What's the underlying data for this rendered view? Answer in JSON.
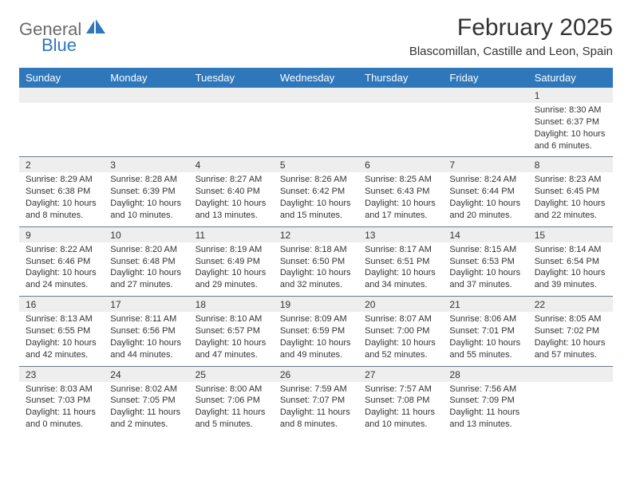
{
  "brand": {
    "word1": "General",
    "word2": "Blue",
    "text_color": "#6b6b6b",
    "accent_color": "#2f77bb"
  },
  "title": "February 2025",
  "location": "Blascomillan, Castille and Leon, Spain",
  "title_fontsize": 30,
  "location_fontsize": 15,
  "header_bg": "#2f77bb",
  "header_text_color": "#ffffff",
  "daynum_bg": "#eeeeee",
  "separator_color": "#6b7a8a",
  "body_fontsize": 11,
  "columns": [
    "Sunday",
    "Monday",
    "Tuesday",
    "Wednesday",
    "Thursday",
    "Friday",
    "Saturday"
  ],
  "weeks": [
    [
      null,
      null,
      null,
      null,
      null,
      null,
      {
        "n": "1",
        "sr": "8:30 AM",
        "ss": "6:37 PM",
        "dl": "10 hours and 6 minutes."
      }
    ],
    [
      {
        "n": "2",
        "sr": "8:29 AM",
        "ss": "6:38 PM",
        "dl": "10 hours and 8 minutes."
      },
      {
        "n": "3",
        "sr": "8:28 AM",
        "ss": "6:39 PM",
        "dl": "10 hours and 10 minutes."
      },
      {
        "n": "4",
        "sr": "8:27 AM",
        "ss": "6:40 PM",
        "dl": "10 hours and 13 minutes."
      },
      {
        "n": "5",
        "sr": "8:26 AM",
        "ss": "6:42 PM",
        "dl": "10 hours and 15 minutes."
      },
      {
        "n": "6",
        "sr": "8:25 AM",
        "ss": "6:43 PM",
        "dl": "10 hours and 17 minutes."
      },
      {
        "n": "7",
        "sr": "8:24 AM",
        "ss": "6:44 PM",
        "dl": "10 hours and 20 minutes."
      },
      {
        "n": "8",
        "sr": "8:23 AM",
        "ss": "6:45 PM",
        "dl": "10 hours and 22 minutes."
      }
    ],
    [
      {
        "n": "9",
        "sr": "8:22 AM",
        "ss": "6:46 PM",
        "dl": "10 hours and 24 minutes."
      },
      {
        "n": "10",
        "sr": "8:20 AM",
        "ss": "6:48 PM",
        "dl": "10 hours and 27 minutes."
      },
      {
        "n": "11",
        "sr": "8:19 AM",
        "ss": "6:49 PM",
        "dl": "10 hours and 29 minutes."
      },
      {
        "n": "12",
        "sr": "8:18 AM",
        "ss": "6:50 PM",
        "dl": "10 hours and 32 minutes."
      },
      {
        "n": "13",
        "sr": "8:17 AM",
        "ss": "6:51 PM",
        "dl": "10 hours and 34 minutes."
      },
      {
        "n": "14",
        "sr": "8:15 AM",
        "ss": "6:53 PM",
        "dl": "10 hours and 37 minutes."
      },
      {
        "n": "15",
        "sr": "8:14 AM",
        "ss": "6:54 PM",
        "dl": "10 hours and 39 minutes."
      }
    ],
    [
      {
        "n": "16",
        "sr": "8:13 AM",
        "ss": "6:55 PM",
        "dl": "10 hours and 42 minutes."
      },
      {
        "n": "17",
        "sr": "8:11 AM",
        "ss": "6:56 PM",
        "dl": "10 hours and 44 minutes."
      },
      {
        "n": "18",
        "sr": "8:10 AM",
        "ss": "6:57 PM",
        "dl": "10 hours and 47 minutes."
      },
      {
        "n": "19",
        "sr": "8:09 AM",
        "ss": "6:59 PM",
        "dl": "10 hours and 49 minutes."
      },
      {
        "n": "20",
        "sr": "8:07 AM",
        "ss": "7:00 PM",
        "dl": "10 hours and 52 minutes."
      },
      {
        "n": "21",
        "sr": "8:06 AM",
        "ss": "7:01 PM",
        "dl": "10 hours and 55 minutes."
      },
      {
        "n": "22",
        "sr": "8:05 AM",
        "ss": "7:02 PM",
        "dl": "10 hours and 57 minutes."
      }
    ],
    [
      {
        "n": "23",
        "sr": "8:03 AM",
        "ss": "7:03 PM",
        "dl": "11 hours and 0 minutes."
      },
      {
        "n": "24",
        "sr": "8:02 AM",
        "ss": "7:05 PM",
        "dl": "11 hours and 2 minutes."
      },
      {
        "n": "25",
        "sr": "8:00 AM",
        "ss": "7:06 PM",
        "dl": "11 hours and 5 minutes."
      },
      {
        "n": "26",
        "sr": "7:59 AM",
        "ss": "7:07 PM",
        "dl": "11 hours and 8 minutes."
      },
      {
        "n": "27",
        "sr": "7:57 AM",
        "ss": "7:08 PM",
        "dl": "11 hours and 10 minutes."
      },
      {
        "n": "28",
        "sr": "7:56 AM",
        "ss": "7:09 PM",
        "dl": "11 hours and 13 minutes."
      },
      null
    ]
  ],
  "labels": {
    "sunrise": "Sunrise:",
    "sunset": "Sunset:",
    "daylight": "Daylight:"
  }
}
